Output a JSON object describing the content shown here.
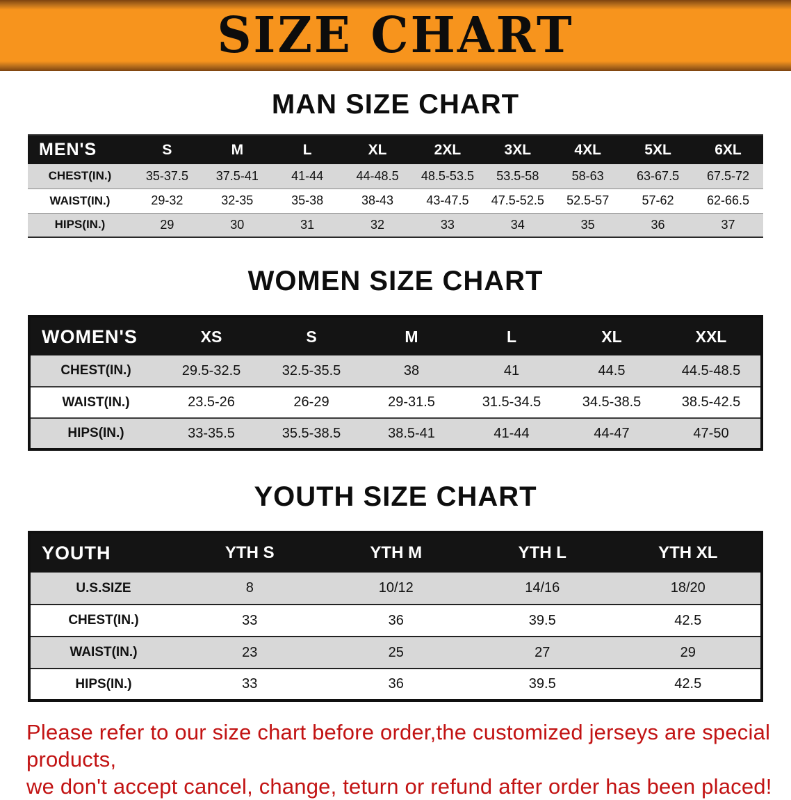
{
  "banner": {
    "title": "SIZE CHART",
    "background_color": "#f7941d",
    "title_color": "#0c0c0c"
  },
  "theme": {
    "table_header_bg": "#141414",
    "table_header_text": "#ffffff",
    "row_stripe_color": "#d8d8d8"
  },
  "sections": {
    "men": {
      "heading": "MAN SIZE CHART",
      "table": {
        "header": [
          "MEN'S",
          "S",
          "M",
          "L",
          "XL",
          "2XL",
          "3XL",
          "4XL",
          "5XL",
          "6XL"
        ],
        "rows": [
          [
            "CHEST(IN.)",
            "35-37.5",
            "37.5-41",
            "41-44",
            "44-48.5",
            "48.5-53.5",
            "53.5-58",
            "58-63",
            "63-67.5",
            "67.5-72"
          ],
          [
            "WAIST(IN.)",
            "29-32",
            "32-35",
            "35-38",
            "38-43",
            "43-47.5",
            "47.5-52.5",
            "52.5-57",
            "57-62",
            "62-66.5"
          ],
          [
            "HIPS(IN.)",
            "29",
            "30",
            "31",
            "32",
            "33",
            "34",
            "35",
            "36",
            "37"
          ]
        ]
      }
    },
    "women": {
      "heading": "WOMEN SIZE CHART",
      "table": {
        "header": [
          "WOMEN'S",
          "XS",
          "S",
          "M",
          "L",
          "XL",
          "XXL"
        ],
        "rows": [
          [
            "CHEST(IN.)",
            "29.5-32.5",
            "32.5-35.5",
            "38",
            "41",
            "44.5",
            "44.5-48.5"
          ],
          [
            "WAIST(IN.)",
            "23.5-26",
            "26-29",
            "29-31.5",
            "31.5-34.5",
            "34.5-38.5",
            "38.5-42.5"
          ],
          [
            "HIPS(IN.)",
            "33-35.5",
            "35.5-38.5",
            "38.5-41",
            "41-44",
            "44-47",
            "47-50"
          ]
        ]
      }
    },
    "youth": {
      "heading": "YOUTH SIZE CHART",
      "table": {
        "header": [
          "YOUTH",
          "YTH S",
          "YTH M",
          "YTH L",
          "YTH XL"
        ],
        "rows": [
          [
            "U.S.SIZE",
            "8",
            "10/12",
            "14/16",
            "18/20"
          ],
          [
            "CHEST(IN.)",
            "33",
            "36",
            "39.5",
            "42.5"
          ],
          [
            "WAIST(IN.)",
            "23",
            "25",
            "27",
            "29"
          ],
          [
            "HIPS(IN.)",
            "33",
            "36",
            "39.5",
            "42.5"
          ]
        ]
      }
    }
  },
  "footer": {
    "lines": [
      "Please refer to our size chart before order,the customized jerseys are special products,",
      "we don't accept cancel, change, teturn or refund after order has been placed!"
    ],
    "text_color": "#c21313"
  }
}
